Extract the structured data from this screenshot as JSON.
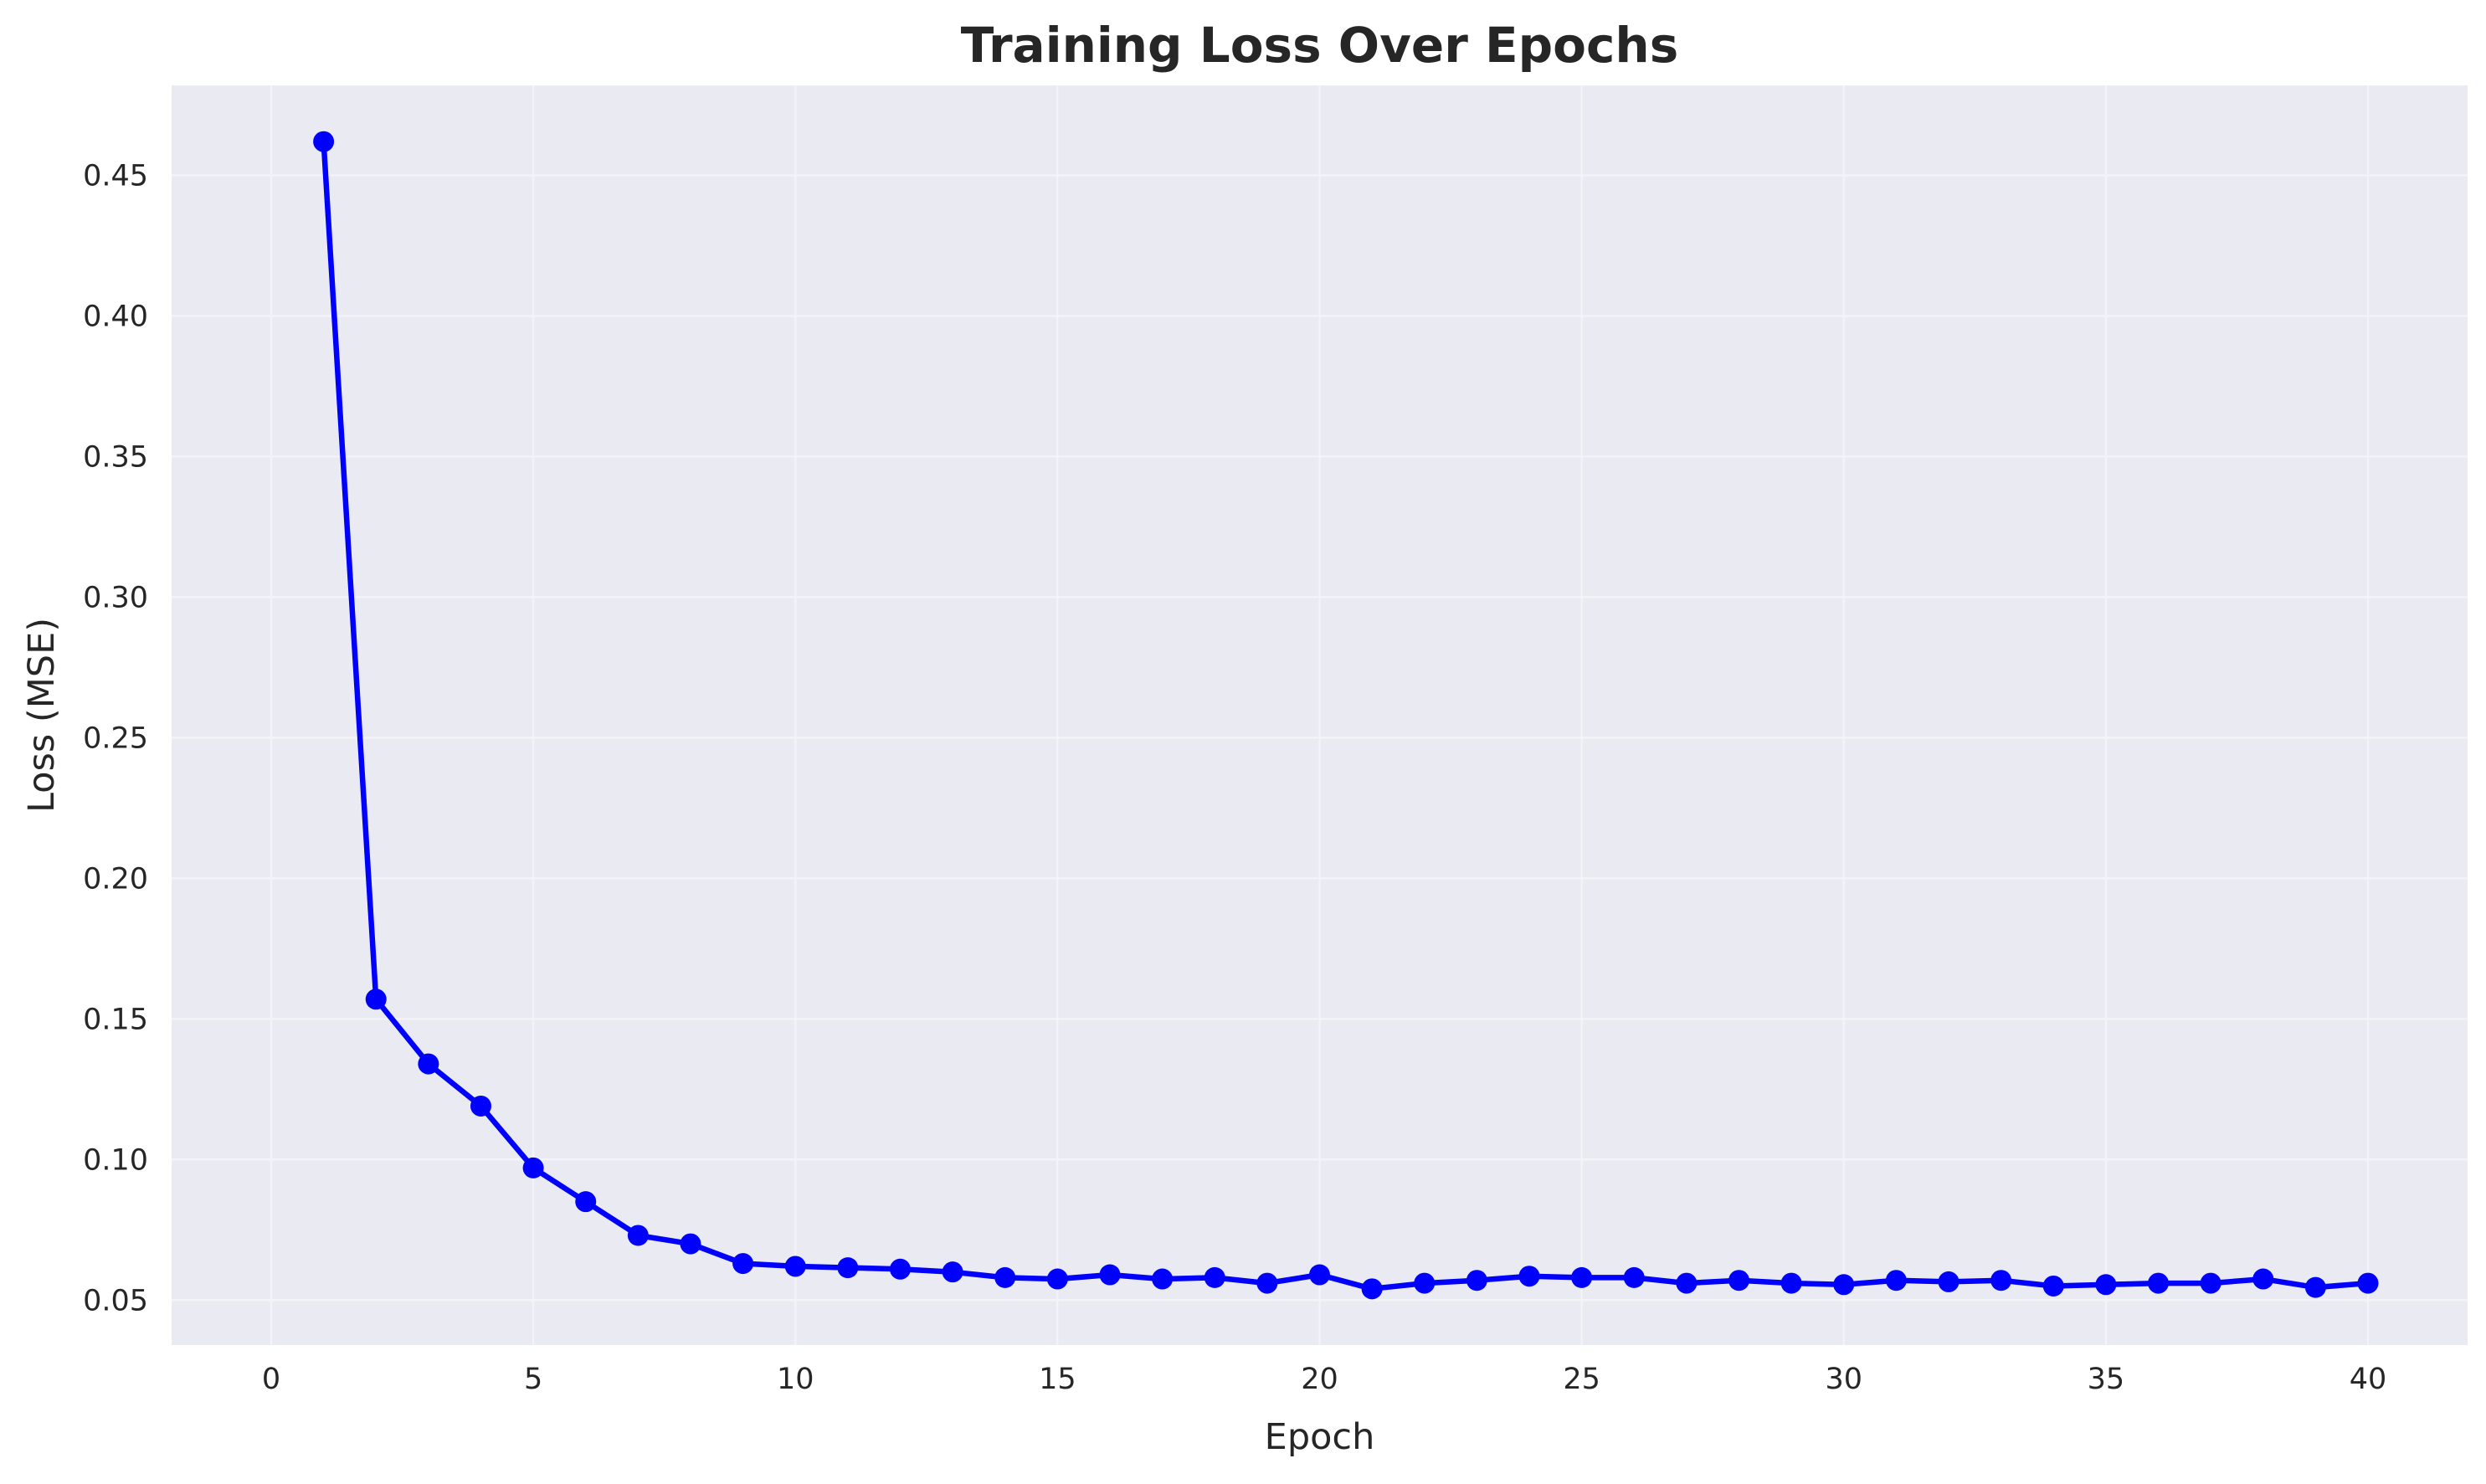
{
  "chart_data": {
    "type": "line",
    "title": "Training Loss Over Epochs",
    "xlabel": "Epoch",
    "ylabel": "Loss (MSE)",
    "xlim": [
      -1.9,
      41.9
    ],
    "ylim": [
      0.034,
      0.482
    ],
    "xticks": [
      0,
      5,
      10,
      15,
      20,
      25,
      30,
      35,
      40
    ],
    "yticks": [
      0.05,
      0.1,
      0.15,
      0.2,
      0.25,
      0.3,
      0.35,
      0.4,
      0.45
    ],
    "ytick_labels": [
      "0.05",
      "0.10",
      "0.15",
      "0.20",
      "0.25",
      "0.30",
      "0.35",
      "0.40",
      "0.45"
    ],
    "xtick_labels": [
      "0",
      "5",
      "10",
      "15",
      "20",
      "25",
      "30",
      "35",
      "40"
    ],
    "grid": true,
    "background_color": "#eaeaf2",
    "grid_color": "#f4f4f8",
    "series": [
      {
        "color": "#0000ff",
        "marker": "circle",
        "x": [
          1,
          2,
          3,
          4,
          5,
          6,
          7,
          8,
          9,
          10,
          11,
          12,
          13,
          14,
          15,
          16,
          17,
          18,
          19,
          20,
          21,
          22,
          23,
          24,
          25,
          26,
          27,
          28,
          29,
          30,
          31,
          32,
          33,
          34,
          35,
          36,
          37,
          38,
          39,
          40
        ],
        "y": [
          0.462,
          0.157,
          0.134,
          0.119,
          0.097,
          0.085,
          0.073,
          0.07,
          0.063,
          0.062,
          0.0615,
          0.061,
          0.06,
          0.058,
          0.0575,
          0.059,
          0.0575,
          0.058,
          0.056,
          0.059,
          0.054,
          0.056,
          0.057,
          0.0585,
          0.058,
          0.058,
          0.056,
          0.057,
          0.056,
          0.0555,
          0.057,
          0.0565,
          0.057,
          0.055,
          0.0555,
          0.056,
          0.056,
          0.0575,
          0.0545,
          0.056
        ]
      }
    ]
  }
}
